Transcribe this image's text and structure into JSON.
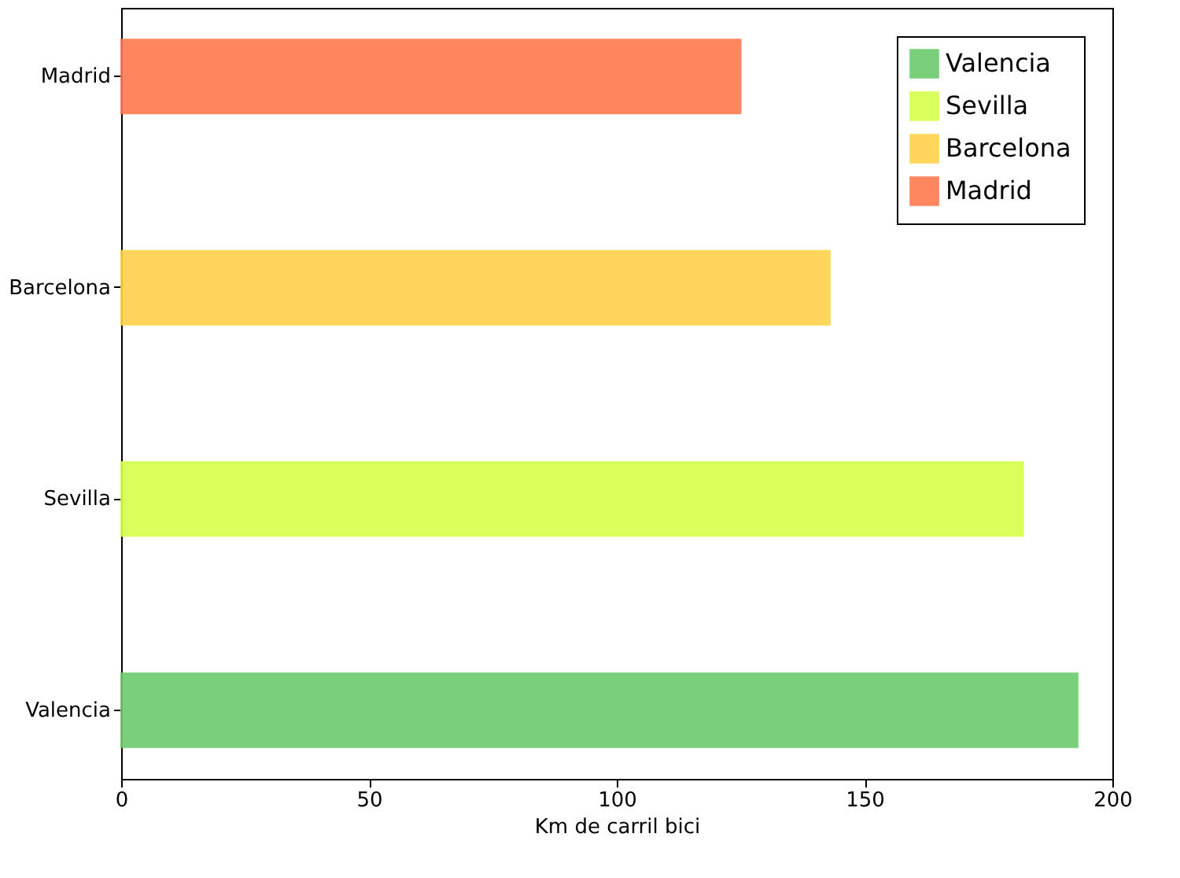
{
  "chart_data": {
    "type": "bar",
    "orientation": "horizontal",
    "xlabel": "Km de carril bici",
    "categories": [
      "Madrid",
      "Barcelona",
      "Sevilla",
      "Valencia"
    ],
    "series": [
      {
        "name": "Valencia",
        "color": "#6ccc6c",
        "values": [
          null,
          null,
          null,
          193
        ]
      },
      {
        "name": "Sevilla",
        "color": "#d4ff4a",
        "values": [
          null,
          null,
          182,
          null
        ]
      },
      {
        "name": "Barcelona",
        "color": "#ffd24a",
        "values": [
          null,
          143,
          null,
          null
        ]
      },
      {
        "name": "Madrid",
        "color": "#ff7a4e",
        "values": [
          125,
          null,
          null,
          null
        ]
      }
    ],
    "xlim": [
      0,
      200
    ],
    "xticks": [
      0,
      50,
      100,
      150,
      200
    ],
    "grid": false,
    "legend": "top right"
  }
}
